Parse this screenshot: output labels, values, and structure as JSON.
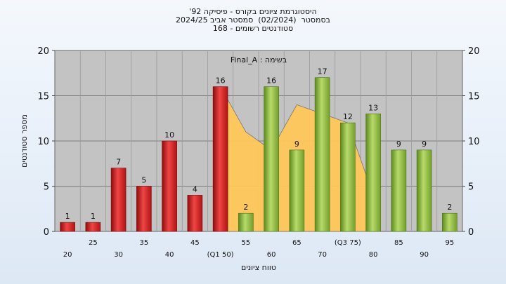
{
  "title": {
    "line1": "היסטוגרמת ציונים בקורס - פיסיקה 92'",
    "line2": "בסמסטר  (02/2024)  סמסטר אביב 2024/25",
    "line3": "סטודנטים רשומים - 168"
  },
  "chart_data": {
    "type": "bar",
    "title": "היסטוגרמת ציונים בקורס - פיסיקה 92' בסמסטר (02/2024) סמסטר אביב 2024/25 סטודנטים רשומים - 168",
    "annotation": "בשימה : Final_A",
    "xlabel": "טווח ציונים",
    "ylabel": "מספר סטודנטים",
    "ylim": [
      0,
      20
    ],
    "yticks": [
      0,
      5,
      10,
      15,
      20
    ],
    "categories": [
      "20",
      "25",
      "30",
      "35",
      "40",
      "45",
      "(Q1 50)",
      "55",
      "60",
      "65",
      "70",
      "(Q3 75)",
      "80",
      "85",
      "90",
      "95"
    ],
    "values": [
      1,
      1,
      7,
      5,
      10,
      4,
      16,
      2,
      16,
      9,
      17,
      12,
      13,
      9,
      9,
      2
    ],
    "bar_colors": [
      "#d92020",
      "#d92020",
      "#d92020",
      "#d92020",
      "#d92020",
      "#d92020",
      "#d92020",
      "#8fbf3a",
      "#8fbf3a",
      "#8fbf3a",
      "#8fbf3a",
      "#8fbf3a",
      "#8fbf3a",
      "#8fbf3a",
      "#8fbf3a",
      "#8fbf3a"
    ],
    "area": {
      "color": "#ffc75a",
      "values": [
        null,
        null,
        null,
        null,
        null,
        null,
        16,
        11,
        9,
        14,
        13,
        12,
        4,
        null,
        null,
        null
      ]
    },
    "grid": true
  }
}
